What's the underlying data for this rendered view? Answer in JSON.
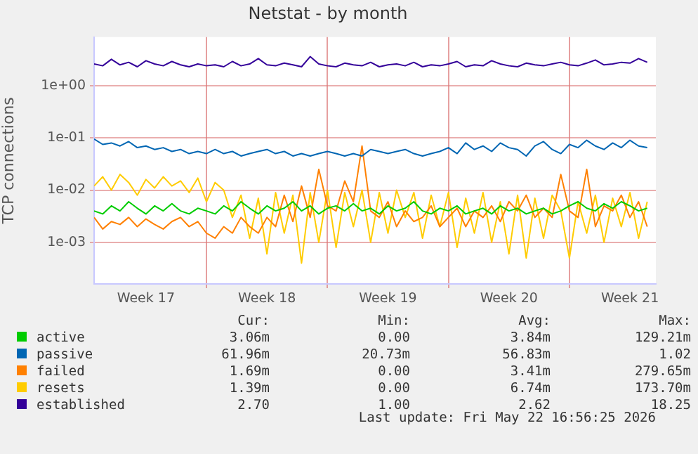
{
  "chart_data": {
    "type": "line",
    "title": "Netstat - by month",
    "ylabel": "TCP connections",
    "log": "y",
    "grid": true,
    "legend": "bottom",
    "marker": "none",
    "line_style": "solid",
    "xlim": [
      "2026-04-20T12:00",
      "2026-05-23T00:00"
    ],
    "xticks": [
      {
        "value": "2026-04-23T12:00",
        "label": "Week 17"
      },
      {
        "value": "2026-04-27T00:00",
        "label": null
      },
      {
        "value": "2026-04-30T12:00",
        "label": "Week 18"
      },
      {
        "value": "2026-05-04T00:00",
        "label": null
      },
      {
        "value": "2026-05-07T12:00",
        "label": "Week 19"
      },
      {
        "value": "2026-05-11T00:00",
        "label": null
      },
      {
        "value": "2026-05-14T12:00",
        "label": "Week 20"
      },
      {
        "value": "2026-05-18T00:00",
        "label": null
      },
      {
        "value": "2026-05-21T12:00",
        "label": "Week 21"
      }
    ],
    "ylim": [
      0.00016,
      8.5
    ],
    "yticks": [
      {
        "value": 0.001,
        "label": "1e-03"
      },
      {
        "value": 0.01,
        "label": "1e-02"
      },
      {
        "value": 0.1,
        "label": "1e-01"
      },
      {
        "value": 1,
        "label": "1e+00"
      }
    ],
    "x": [
      "2026-04-20T12:00",
      "2026-04-21T00:00",
      "2026-04-21T12:00",
      "2026-04-22T00:00",
      "2026-04-22T12:00",
      "2026-04-23T00:00",
      "2026-04-23T12:00",
      "2026-04-24T00:00",
      "2026-04-24T12:00",
      "2026-04-25T00:00",
      "2026-04-25T12:00",
      "2026-04-26T00:00",
      "2026-04-26T12:00",
      "2026-04-27T00:00",
      "2026-04-27T12:00",
      "2026-04-28T00:00",
      "2026-04-28T12:00",
      "2026-04-29T00:00",
      "2026-04-29T12:00",
      "2026-04-30T00:00",
      "2026-04-30T12:00",
      "2026-05-01T00:00",
      "2026-05-01T12:00",
      "2026-05-02T00:00",
      "2026-05-02T12:00",
      "2026-05-03T00:00",
      "2026-05-03T12:00",
      "2026-05-04T00:00",
      "2026-05-04T12:00",
      "2026-05-05T00:00",
      "2026-05-05T12:00",
      "2026-05-06T00:00",
      "2026-05-06T12:00",
      "2026-05-07T00:00",
      "2026-05-07T12:00",
      "2026-05-08T00:00",
      "2026-05-08T12:00",
      "2026-05-09T00:00",
      "2026-05-09T12:00",
      "2026-05-10T00:00",
      "2026-05-10T12:00",
      "2026-05-11T00:00",
      "2026-05-11T12:00",
      "2026-05-12T00:00",
      "2026-05-12T12:00",
      "2026-05-13T00:00",
      "2026-05-13T12:00",
      "2026-05-14T00:00",
      "2026-05-14T12:00",
      "2026-05-15T00:00",
      "2026-05-15T12:00",
      "2026-05-16T00:00",
      "2026-05-16T12:00",
      "2026-05-17T00:00",
      "2026-05-17T12:00",
      "2026-05-18T00:00",
      "2026-05-18T12:00",
      "2026-05-19T00:00",
      "2026-05-19T12:00",
      "2026-05-20T00:00",
      "2026-05-20T12:00",
      "2026-05-21T00:00",
      "2026-05-21T12:00",
      "2026-05-22T00:00",
      "2026-05-22T12:00"
    ],
    "series": [
      {
        "name": "active",
        "color": "#00cc00",
        "values": [
          0.004,
          0.0035,
          0.005,
          0.004,
          0.006,
          0.0045,
          0.0035,
          0.005,
          0.004,
          0.0055,
          0.004,
          0.0035,
          0.0045,
          0.004,
          0.0035,
          0.005,
          0.004,
          0.006,
          0.0045,
          0.0035,
          0.005,
          0.004,
          0.0045,
          0.006,
          0.004,
          0.005,
          0.0035,
          0.0045,
          0.005,
          0.004,
          0.0055,
          0.004,
          0.0045,
          0.0035,
          0.005,
          0.004,
          0.0045,
          0.006,
          0.004,
          0.0035,
          0.0045,
          0.004,
          0.005,
          0.0035,
          0.004,
          0.0045,
          0.0035,
          0.005,
          0.004,
          0.0045,
          0.0035,
          0.004,
          0.0045,
          0.0035,
          0.004,
          0.005,
          0.006,
          0.0045,
          0.004,
          0.0055,
          0.0045,
          0.006,
          0.005,
          0.004,
          0.0045
        ]
      },
      {
        "name": "passive",
        "color": "#0066b3",
        "values": [
          0.095,
          0.075,
          0.08,
          0.07,
          0.085,
          0.065,
          0.07,
          0.06,
          0.065,
          0.055,
          0.06,
          0.05,
          0.055,
          0.05,
          0.06,
          0.05,
          0.055,
          0.045,
          0.05,
          0.055,
          0.06,
          0.05,
          0.055,
          0.045,
          0.05,
          0.045,
          0.05,
          0.055,
          0.05,
          0.045,
          0.05,
          0.045,
          0.06,
          0.055,
          0.05,
          0.055,
          0.06,
          0.05,
          0.045,
          0.05,
          0.055,
          0.065,
          0.05,
          0.08,
          0.06,
          0.07,
          0.055,
          0.08,
          0.065,
          0.06,
          0.045,
          0.07,
          0.085,
          0.06,
          0.05,
          0.075,
          0.065,
          0.09,
          0.07,
          0.06,
          0.08,
          0.065,
          0.09,
          0.07,
          0.065
        ]
      },
      {
        "name": "failed",
        "color": "#ff8000",
        "values": [
          0.003,
          0.0018,
          0.0025,
          0.0022,
          0.003,
          0.002,
          0.0028,
          0.0022,
          0.0018,
          0.0025,
          0.003,
          0.002,
          0.0025,
          0.0015,
          0.0012,
          0.002,
          0.0015,
          0.003,
          0.002,
          0.0015,
          0.003,
          0.002,
          0.008,
          0.0025,
          0.012,
          0.003,
          0.025,
          0.005,
          0.004,
          0.015,
          0.006,
          0.07,
          0.004,
          0.003,
          0.006,
          0.002,
          0.004,
          0.0025,
          0.003,
          0.005,
          0.002,
          0.003,
          0.0045,
          0.002,
          0.004,
          0.003,
          0.005,
          0.0025,
          0.006,
          0.004,
          0.008,
          0.003,
          0.0045,
          0.003,
          0.02,
          0.004,
          0.003,
          0.025,
          0.002,
          0.005,
          0.004,
          0.008,
          0.003,
          0.006,
          0.002
        ]
      },
      {
        "name": "resets",
        "color": "#ffcc00",
        "values": [
          0.012,
          0.018,
          0.01,
          0.02,
          0.014,
          0.008,
          0.016,
          0.011,
          0.018,
          0.012,
          0.015,
          0.009,
          0.017,
          0.006,
          0.014,
          0.01,
          0.003,
          0.008,
          0.0012,
          0.007,
          0.0006,
          0.009,
          0.0015,
          0.008,
          0.0004,
          0.009,
          0.001,
          0.01,
          0.0008,
          0.009,
          0.002,
          0.01,
          0.001,
          0.009,
          0.0015,
          0.01,
          0.003,
          0.009,
          0.0012,
          0.008,
          0.002,
          0.009,
          0.0008,
          0.007,
          0.0015,
          0.009,
          0.001,
          0.006,
          0.0006,
          0.008,
          0.0005,
          0.007,
          0.0012,
          0.008,
          0.004,
          0.0005,
          0.006,
          0.0015,
          0.008,
          0.001,
          0.007,
          0.002,
          0.009,
          0.0012,
          0.006
        ]
      },
      {
        "name": "established",
        "color": "#330099",
        "values": [
          2.6,
          2.4,
          3.2,
          2.5,
          2.8,
          2.3,
          3.0,
          2.6,
          2.4,
          2.9,
          2.5,
          2.3,
          2.6,
          2.4,
          2.5,
          2.3,
          2.9,
          2.4,
          2.6,
          3.3,
          2.5,
          2.4,
          2.7,
          2.5,
          2.3,
          3.6,
          2.6,
          2.4,
          2.3,
          2.7,
          2.5,
          2.4,
          2.8,
          2.3,
          2.5,
          2.6,
          2.4,
          2.8,
          2.3,
          2.5,
          2.4,
          2.6,
          2.9,
          2.3,
          2.5,
          2.4,
          3.0,
          2.6,
          2.4,
          2.3,
          2.7,
          2.5,
          2.4,
          2.6,
          2.8,
          2.5,
          2.4,
          2.7,
          3.1,
          2.5,
          2.6,
          2.8,
          2.7,
          3.3,
          2.8
        ]
      }
    ],
    "annotations": [
      "Cur:",
      "Min:",
      "Avg:",
      "Max:",
      "3.06m",
      "0.00",
      "3.84m",
      "129.21m",
      "61.96m",
      "20.73m",
      "56.83m",
      "1.02",
      "1.69m",
      "0.00",
      "3.41m",
      "279.65m",
      "1.39m",
      "0.00",
      "6.74m",
      "173.70m",
      "2.70",
      "1.00",
      "2.62",
      "18.25",
      "Last update: Fri May 22 16:56:25 2026"
    ]
  }
}
